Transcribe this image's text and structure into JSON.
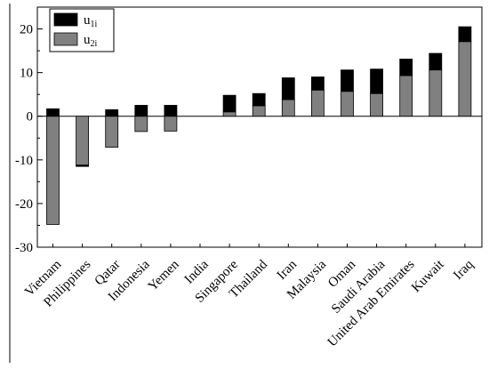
{
  "chart_data": {
    "type": "bar",
    "stacked": true,
    "categories": [
      "Vietnam",
      "Philippines",
      "Qatar",
      "Indonesia",
      "Yemen",
      "India",
      "Singapore",
      "Thailand",
      "Iran",
      "Malaysia",
      "Oman",
      "Saudi Arabia",
      "United Arab Emirates",
      "Kuwait",
      "Iraq"
    ],
    "series": [
      {
        "name": "u1i",
        "name_main": "u",
        "name_sub": "1i",
        "color": "#000000",
        "values": [
          1.7,
          -0.3,
          1.5,
          2.5,
          2.5,
          0.0,
          3.8,
          2.8,
          5.0,
          3.0,
          4.9,
          5.6,
          3.8,
          3.8,
          3.4
        ]
      },
      {
        "name": "u2i",
        "name_main": "u",
        "name_sub": "2i",
        "color": "#808080",
        "values": [
          -24.8,
          -11.2,
          -7.1,
          -3.5,
          -3.4,
          0.0,
          1.0,
          2.4,
          3.8,
          6.0,
          5.7,
          5.2,
          9.3,
          10.6,
          17.1
        ]
      }
    ],
    "yticks": [
      -30,
      -20,
      -10,
      0,
      10,
      20
    ],
    "ylim": [
      -30,
      25
    ],
    "xlabel": "",
    "ylabel": "",
    "legend_position": "top-left"
  }
}
